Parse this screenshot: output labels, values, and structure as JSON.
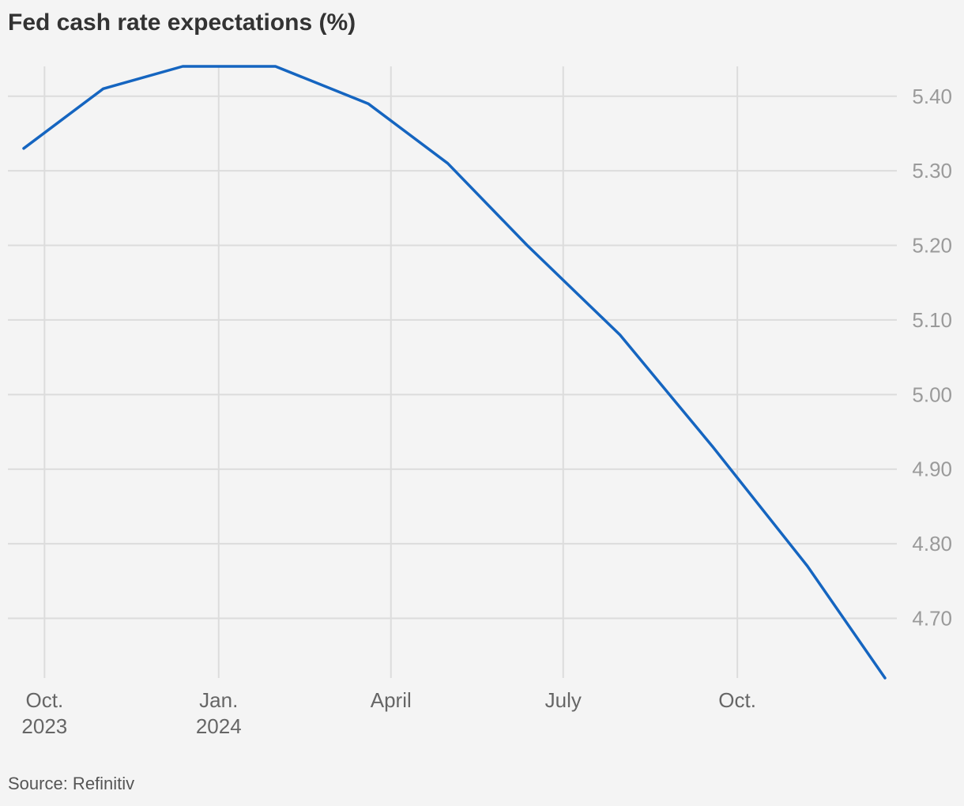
{
  "chart_data": {
    "type": "line",
    "title": "Fed cash rate expectations (%)",
    "source": "Source: Refinitiv",
    "xlabel": "",
    "ylabel": "",
    "x": [
      "2023-09-20",
      "2023-11-01",
      "2023-12-13",
      "2024-01-31",
      "2024-03-20",
      "2024-05-01",
      "2024-06-12",
      "2024-07-31",
      "2024-09-18",
      "2024-11-07",
      "2024-12-18"
    ],
    "series": [
      {
        "values": [
          5.33,
          5.41,
          5.44,
          5.44,
          5.39,
          5.31,
          5.2,
          5.08,
          4.93,
          4.77,
          4.62
        ],
        "color": "#1565c0"
      }
    ],
    "x_ticks": [
      {
        "date": "2023-10-01",
        "line1": "Oct.",
        "line2": "2023"
      },
      {
        "date": "2024-01-01",
        "line1": "Jan.",
        "line2": "2024"
      },
      {
        "date": "2024-04-01",
        "line1": "April",
        "line2": ""
      },
      {
        "date": "2024-07-01",
        "line1": "July",
        "line2": ""
      },
      {
        "date": "2024-10-01",
        "line1": "Oct.",
        "line2": ""
      }
    ],
    "y_ticks": [
      "5.40",
      "5.30",
      "5.20",
      "5.10",
      "5.00",
      "4.90",
      "4.80",
      "4.70"
    ],
    "ylim": [
      4.62,
      5.44
    ],
    "xlim": [
      "2023-09-20",
      "2024-12-18"
    ],
    "y_axis_side": "right",
    "grid": true,
    "legend": "none"
  }
}
